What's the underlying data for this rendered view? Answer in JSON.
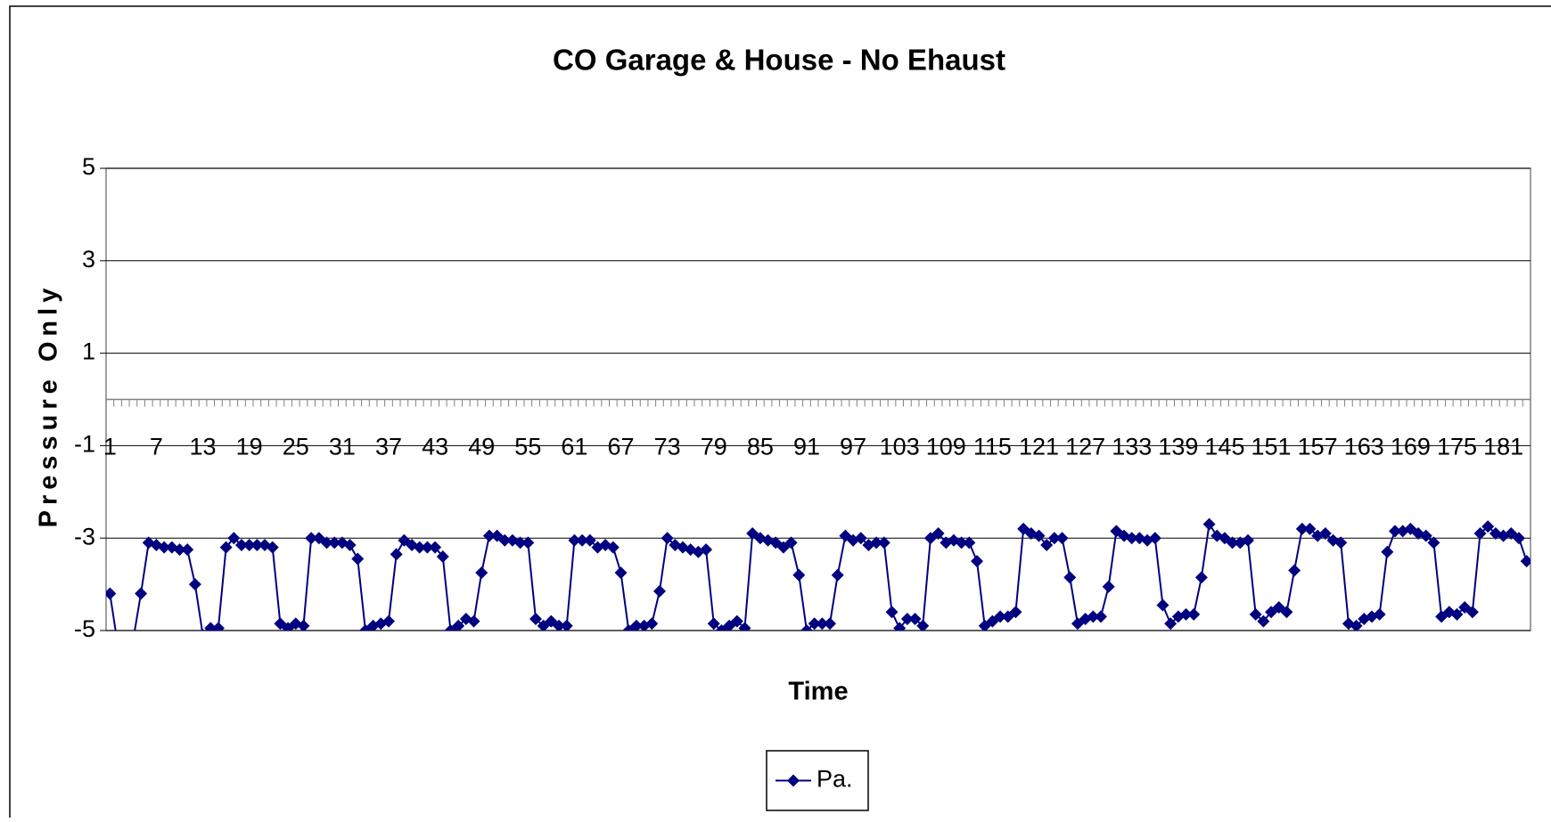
{
  "chart_data": {
    "type": "line",
    "title": "CO Garage & House - No Ehaust",
    "x_label": "Time",
    "y_label": "Pressure Only",
    "categories": [
      1,
      null,
      null,
      null,
      null,
      null,
      7,
      null,
      null,
      null,
      null,
      null,
      13,
      null,
      null,
      null,
      null,
      null,
      19,
      null,
      null,
      null,
      null,
      null,
      25,
      null,
      null,
      null,
      null,
      null,
      31,
      null,
      null,
      null,
      null,
      null,
      37,
      null,
      null,
      null,
      null,
      null,
      43,
      null,
      null,
      null,
      null,
      null,
      49,
      null,
      null,
      null,
      null,
      null,
      55,
      null,
      null,
      null,
      null,
      null,
      61,
      null,
      null,
      null,
      null,
      null,
      67,
      null,
      null,
      null,
      null,
      null,
      73,
      null,
      null,
      null,
      null,
      null,
      79,
      null,
      null,
      null,
      null,
      null,
      85,
      null,
      null,
      null,
      null,
      null,
      91,
      null,
      null,
      null,
      null,
      null,
      97,
      null,
      null,
      null,
      null,
      null,
      103,
      null,
      null,
      null,
      null,
      null,
      109,
      null,
      null,
      null,
      null,
      null,
      115,
      null,
      null,
      null,
      null,
      null,
      121,
      null,
      null,
      null,
      null,
      null,
      127,
      null,
      null,
      null,
      null,
      null,
      133,
      null,
      null,
      null,
      null,
      null,
      139,
      null,
      null,
      null,
      null,
      null,
      145,
      null,
      null,
      null,
      null,
      null,
      151,
      null,
      null,
      null,
      null,
      null,
      157,
      null,
      null,
      null,
      null,
      null,
      163,
      null,
      null,
      null,
      null,
      null,
      169,
      null,
      null,
      null,
      null,
      null,
      175,
      null,
      null,
      null,
      null,
      null,
      181,
      null,
      null,
      null
    ],
    "series": [
      {
        "name": "Pa.",
        "color": "#000080",
        "values": [
          -4.2,
          -5.3,
          -5.4,
          -5.2,
          -4.2,
          -3.1,
          -3.15,
          -3.2,
          -3.2,
          -3.25,
          -3.25,
          -4.0,
          -5.1,
          -4.95,
          -4.95,
          -3.2,
          -3.0,
          -3.15,
          -3.15,
          -3.15,
          -3.15,
          -3.2,
          -4.85,
          -4.95,
          -4.85,
          -4.9,
          -3.0,
          -3.0,
          -3.1,
          -3.1,
          -3.1,
          -3.15,
          -3.45,
          -5.0,
          -4.9,
          -4.85,
          -4.8,
          -3.35,
          -3.05,
          -3.15,
          -3.2,
          -3.2,
          -3.2,
          -3.4,
          -5.0,
          -4.9,
          -4.75,
          -4.8,
          -3.75,
          -2.95,
          -2.95,
          -3.05,
          -3.05,
          -3.1,
          -3.1,
          -4.75,
          -4.9,
          -4.8,
          -4.9,
          -4.9,
          -3.05,
          -3.05,
          -3.05,
          -3.2,
          -3.15,
          -3.2,
          -3.75,
          -5.0,
          -4.9,
          -4.9,
          -4.85,
          -4.15,
          -3.0,
          -3.15,
          -3.2,
          -3.25,
          -3.3,
          -3.25,
          -4.85,
          -5.0,
          -4.9,
          -4.8,
          -4.95,
          -2.9,
          -3.0,
          -3.05,
          -3.1,
          -3.2,
          -3.1,
          -3.8,
          -5.0,
          -4.85,
          -4.85,
          -4.85,
          -3.8,
          -2.95,
          -3.05,
          -3.0,
          -3.15,
          -3.1,
          -3.1,
          -4.6,
          -4.95,
          -4.75,
          -4.75,
          -4.9,
          -3.0,
          -2.9,
          -3.1,
          -3.05,
          -3.1,
          -3.1,
          -3.5,
          -4.9,
          -4.8,
          -4.7,
          -4.7,
          -4.6,
          -2.8,
          -2.9,
          -2.95,
          -3.15,
          -3.0,
          -3.0,
          -3.85,
          -4.85,
          -4.75,
          -4.7,
          -4.7,
          -4.05,
          -2.85,
          -2.95,
          -3.0,
          -3.0,
          -3.05,
          -3.0,
          -4.45,
          -4.85,
          -4.7,
          -4.65,
          -4.65,
          -3.85,
          -2.7,
          -2.95,
          -3.0,
          -3.1,
          -3.1,
          -3.05,
          -4.65,
          -4.8,
          -4.6,
          -4.5,
          -4.6,
          -3.7,
          -2.8,
          -2.8,
          -2.95,
          -2.9,
          -3.05,
          -3.1,
          -4.85,
          -4.9,
          -4.75,
          -4.7,
          -4.65,
          -3.3,
          -2.85,
          -2.85,
          -2.8,
          -2.9,
          -2.95,
          -3.1,
          -4.7,
          -4.6,
          -4.65,
          -4.5,
          -4.6,
          -2.9,
          -2.75,
          -2.9,
          -2.95,
          -2.9,
          -3.0,
          -3.5
        ]
      }
    ],
    "ylim": [
      -5,
      5
    ],
    "yticks": [
      -5,
      -3,
      -1,
      1,
      3,
      5
    ],
    "grid": true,
    "legend": "bottom",
    "markers": "diamond"
  }
}
